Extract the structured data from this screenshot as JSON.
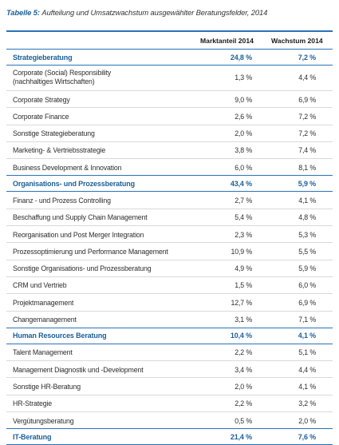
{
  "caption": {
    "lead": "Tabelle 5:",
    "text": "Aufteilung und Umsatzwachstum ausgewählter Beratungsfelder, 2014"
  },
  "columns": {
    "share": "Marktanteil 2014",
    "growth": "Wachstum 2014"
  },
  "rows": [
    {
      "label": "Strategieberatung",
      "share": "24,8 %",
      "growth": "7,2 %",
      "group": true
    },
    {
      "label": "Corporate (Social) Responsibility\n(nachhaltiges Wirtschaften)",
      "share": "1,3 %",
      "growth": "4,4 %"
    },
    {
      "label": "Corporate Strategy",
      "share": "9,0 %",
      "growth": "6,9 %"
    },
    {
      "label": "Corporate Finance",
      "share": "2,6 %",
      "growth": "7,2 %"
    },
    {
      "label": "Sonstige Strategieberatung",
      "share": "2,0 %",
      "growth": "7,2 %"
    },
    {
      "label": "Marketing- & Vertriebsstrategie",
      "share": "3,8 %",
      "growth": "7,4 %"
    },
    {
      "label": "Business Development & Innovation",
      "share": "6,0 %",
      "growth": "8,1 %"
    },
    {
      "label": "Organisations- und Prozessberatung",
      "share": "43,4 %",
      "growth": "5,9 %",
      "group": true
    },
    {
      "label": "Finanz - und Prozess Controlling",
      "share": "2,7 %",
      "growth": "4,1 %"
    },
    {
      "label": "Beschaffung und Supply Chain Management",
      "share": "5,4 %",
      "growth": "4,8 %"
    },
    {
      "label": "Reorganisation und Post Merger Integration",
      "share": "2,3 %",
      "growth": "5,3 %"
    },
    {
      "label": "Prozessoptimierung und Performance Management",
      "share": "10,9 %",
      "growth": "5,5 %"
    },
    {
      "label": "Sonstige Organisations- und Prozessberatung",
      "share": "4,9 %",
      "growth": "5,9 %"
    },
    {
      "label": "CRM und Vertrieb",
      "share": "1,5 %",
      "growth": "6,0 %"
    },
    {
      "label": "Projektmanagement",
      "share": "12,7 %",
      "growth": "6,9 %"
    },
    {
      "label": "Changemanagement",
      "share": "3,1 %",
      "growth": "7,1 %"
    },
    {
      "label": "Human Resources Beratung",
      "share": "10,4 %",
      "growth": "4,1 %",
      "group": true
    },
    {
      "label": "Talent Management",
      "share": "2,2 %",
      "growth": "5,1 %"
    },
    {
      "label": "Management Diagnostik und -Development",
      "share": "3,4 %",
      "growth": "4,4 %"
    },
    {
      "label": "Sonstige HR-Beratung",
      "share": "2,0 %",
      "growth": "4,1 %"
    },
    {
      "label": "HR-Strategie",
      "share": "2,2 %",
      "growth": "3,2 %"
    },
    {
      "label": "Vergütungsberatung",
      "share": "0,5 %",
      "growth": "2,0 %"
    },
    {
      "label": "IT-Beratung",
      "share": "21,4 %",
      "growth": "7,6 %",
      "group": true
    }
  ]
}
